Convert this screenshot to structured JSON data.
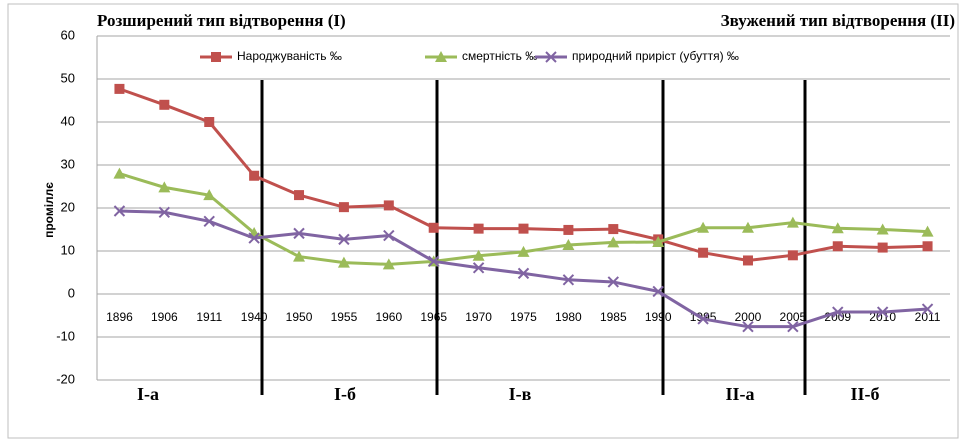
{
  "chart_data": {
    "type": "line",
    "title_left": "Розширений тип відтворення (I)",
    "title_right": "Звужений  тип відтворення (II)",
    "y_label": "проміллє",
    "categories": [
      "1896",
      "1906",
      "1911",
      "1940",
      "1950",
      "1955",
      "1960",
      "1965",
      "1970",
      "1975",
      "1980",
      "1985",
      "1990",
      "1995",
      "2000",
      "2005",
      "2009",
      "2010",
      "2011"
    ],
    "series": [
      {
        "name": "Народжуваність ‰",
        "color": "#c0504d",
        "marker": "square",
        "values": [
          47.7,
          44,
          40,
          27.5,
          23,
          20.2,
          20.6,
          15.4,
          15.2,
          15.2,
          14.9,
          15.1,
          12.7,
          9.6,
          7.8,
          9,
          11.1,
          10.8,
          11.1
        ]
      },
      {
        "name": "смертність ‰",
        "color": "#9bbb59",
        "marker": "triangle",
        "values": [
          28,
          24.8,
          23,
          14.2,
          8.7,
          7.3,
          6.9,
          7.6,
          8.9,
          9.8,
          11.4,
          12,
          12.1,
          15.4,
          15.4,
          16.6,
          15.3,
          15,
          14.5
        ]
      },
      {
        "name": "природний приріст (убуття) ‰",
        "color": "#8064a2",
        "marker": "x",
        "values": [
          19.3,
          19,
          16.9,
          13,
          14.1,
          12.7,
          13.6,
          7.6,
          6.1,
          4.8,
          3.3,
          2.8,
          0.6,
          -5.8,
          -7.6,
          -7.6,
          -4.2,
          -4.2,
          -3.5
        ]
      }
    ],
    "periods": [
      "I-а",
      "I-б",
      "I-в",
      "II-а",
      "II-б"
    ],
    "ylim": [
      -20,
      60
    ],
    "yticks": [
      -20,
      -10,
      0,
      10,
      20,
      30,
      40,
      50,
      60
    ],
    "grid": true
  }
}
